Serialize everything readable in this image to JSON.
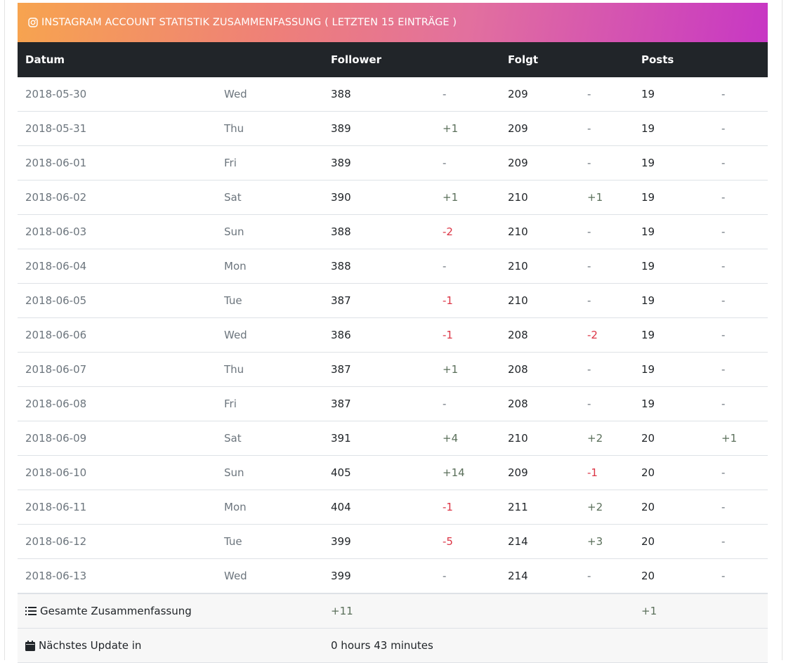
{
  "banner": {
    "title": "INSTAGRAM ACCOUNT STATISTIK ZUSAMMENFASSUNG ( LETZTEN 15 EINTRÄGE )"
  },
  "header": {
    "datum": "Datum",
    "follower": "Follower",
    "folgt": "Folgt",
    "posts": "Posts"
  },
  "rows": [
    {
      "date": "2018-05-30",
      "day": "Wed",
      "follower": "388",
      "dfollower": "-",
      "folgt": "209",
      "dfolgt": "-",
      "posts": "19",
      "dposts": "-"
    },
    {
      "date": "2018-05-31",
      "day": "Thu",
      "follower": "389",
      "dfollower": "+1",
      "folgt": "209",
      "dfolgt": "-",
      "posts": "19",
      "dposts": "-"
    },
    {
      "date": "2018-06-01",
      "day": "Fri",
      "follower": "389",
      "dfollower": "-",
      "folgt": "209",
      "dfolgt": "-",
      "posts": "19",
      "dposts": "-"
    },
    {
      "date": "2018-06-02",
      "day": "Sat",
      "follower": "390",
      "dfollower": "+1",
      "folgt": "210",
      "dfolgt": "+1",
      "posts": "19",
      "dposts": "-"
    },
    {
      "date": "2018-06-03",
      "day": "Sun",
      "follower": "388",
      "dfollower": "-2",
      "folgt": "210",
      "dfolgt": "-",
      "posts": "19",
      "dposts": "-"
    },
    {
      "date": "2018-06-04",
      "day": "Mon",
      "follower": "388",
      "dfollower": "-",
      "folgt": "210",
      "dfolgt": "-",
      "posts": "19",
      "dposts": "-"
    },
    {
      "date": "2018-06-05",
      "day": "Tue",
      "follower": "387",
      "dfollower": "-1",
      "folgt": "210",
      "dfolgt": "-",
      "posts": "19",
      "dposts": "-"
    },
    {
      "date": "2018-06-06",
      "day": "Wed",
      "follower": "386",
      "dfollower": "-1",
      "folgt": "208",
      "dfolgt": "-2",
      "posts": "19",
      "dposts": "-"
    },
    {
      "date": "2018-06-07",
      "day": "Thu",
      "follower": "387",
      "dfollower": "+1",
      "folgt": "208",
      "dfolgt": "-",
      "posts": "19",
      "dposts": "-"
    },
    {
      "date": "2018-06-08",
      "day": "Fri",
      "follower": "387",
      "dfollower": "-",
      "folgt": "208",
      "dfolgt": "-",
      "posts": "19",
      "dposts": "-"
    },
    {
      "date": "2018-06-09",
      "day": "Sat",
      "follower": "391",
      "dfollower": "+4",
      "folgt": "210",
      "dfolgt": "+2",
      "posts": "20",
      "dposts": "+1"
    },
    {
      "date": "2018-06-10",
      "day": "Sun",
      "follower": "405",
      "dfollower": "+14",
      "folgt": "209",
      "dfolgt": "-1",
      "posts": "20",
      "dposts": "-"
    },
    {
      "date": "2018-06-11",
      "day": "Mon",
      "follower": "404",
      "dfollower": "-1",
      "folgt": "211",
      "dfolgt": "+2",
      "posts": "20",
      "dposts": "-"
    },
    {
      "date": "2018-06-12",
      "day": "Tue",
      "follower": "399",
      "dfollower": "-5",
      "folgt": "214",
      "dfolgt": "+3",
      "posts": "20",
      "dposts": "-"
    },
    {
      "date": "2018-06-13",
      "day": "Wed",
      "follower": "399",
      "dfollower": "-",
      "folgt": "214",
      "dfolgt": "-",
      "posts": "20",
      "dposts": "-"
    }
  ],
  "summary": {
    "label": "Gesamte Zusammenfassung",
    "follower": "+11",
    "posts": "+1",
    "icon": "list-ol-icon"
  },
  "next_update": {
    "label": "Nächstes Update in",
    "value": "0 hours 43 minutes",
    "icon": "calendar-icon"
  },
  "colors": {
    "header_bg": "#212529",
    "negative": "#dc3545",
    "positive": "#5a6f5a",
    "gradient_start": "#f7a44f",
    "gradient_end": "#c737c4"
  }
}
